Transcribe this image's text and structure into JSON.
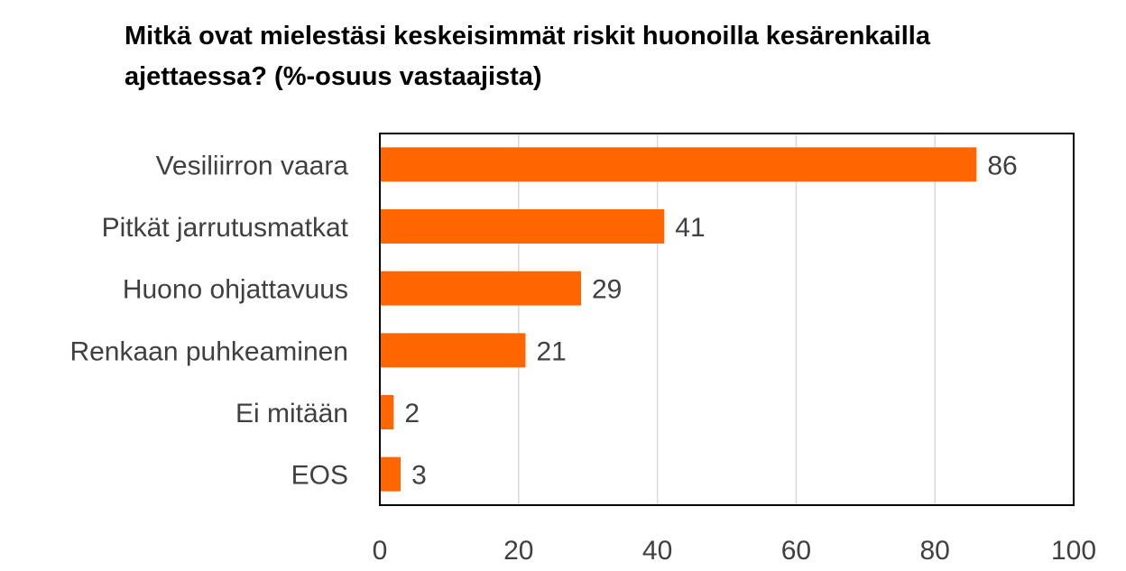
{
  "chart_data": {
    "type": "bar",
    "orientation": "horizontal",
    "title_lines": [
      "Mitkä ovat mielestäsi keskeisimmät riskit huonoilla kesärenkailla",
      "ajettaessa? (%-osuus vastaajista)"
    ],
    "categories": [
      "Vesiliirron vaara",
      "Pitkät jarrutusmatkat",
      "Huono ohjattavuus",
      "Renkaan puhkeaminen",
      "Ei mitään",
      "EOS"
    ],
    "values": [
      86,
      41,
      29,
      21,
      2,
      3
    ],
    "value_labels": [
      "86",
      "41",
      "29",
      "21",
      "2",
      "3"
    ],
    "xlim": [
      0,
      100
    ],
    "x_ticks": [
      0,
      20,
      40,
      60,
      80,
      100
    ],
    "x_tick_labels": [
      "0",
      "20",
      "40",
      "60",
      "80",
      "100"
    ],
    "grid": "vertical",
    "legend": "none",
    "colors": {
      "bar": "#ff6600",
      "grid": "#d9d9d9",
      "frame": "#000000",
      "text": "#404040"
    }
  }
}
